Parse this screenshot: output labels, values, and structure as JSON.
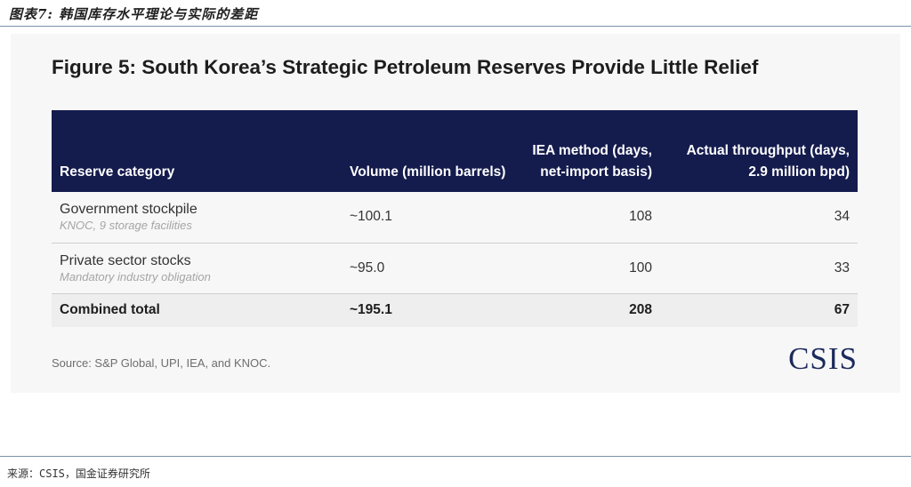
{
  "header": {
    "title": "图表7: 韩国库存水平理论与实际的差距"
  },
  "figure": {
    "title": "Figure 5: South Korea’s Strategic Petroleum Reserves Provide Little Relief",
    "columns": [
      "Reserve category",
      "Volume (million barrels)",
      "IEA method (days, net-import basis)",
      "Actual throughput (days, 2.9 million bpd)"
    ],
    "rows": [
      {
        "category": "Government stockpile",
        "subtitle": "KNOC, 9 storage facilities",
        "volume": "~100.1",
        "iea_days": "108",
        "actual_days": "34"
      },
      {
        "category": "Private sector stocks",
        "subtitle": "Mandatory industry obligation",
        "volume": "~95.0",
        "iea_days": "100",
        "actual_days": "33"
      }
    ],
    "total": {
      "category": "Combined total",
      "volume": "~195.1",
      "iea_days": "208",
      "actual_days": "67"
    },
    "source": "Source: S&P Global, UPI, IEA, and KNOC.",
    "logo": "CSIS"
  },
  "footer": {
    "source": "来源：CSIS，国金证券研究所"
  },
  "colors": {
    "header_bg": "#141b4d",
    "logo": "#1b2a5c",
    "rule": "#7a90ad"
  }
}
